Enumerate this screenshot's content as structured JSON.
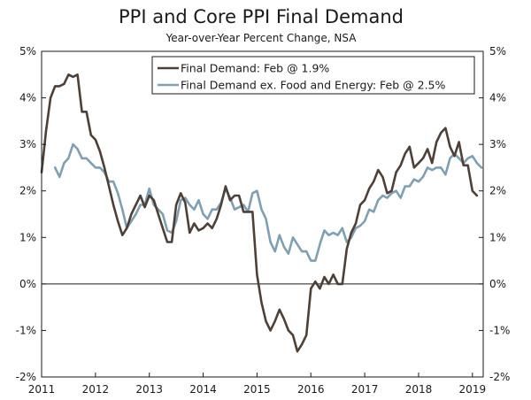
{
  "chart_data": {
    "type": "line",
    "title": "PPI and Core PPI Final Demand",
    "subtitle": "Year-over-Year Percent Change, NSA",
    "xlabel": "",
    "ylabel": "",
    "xlim": [
      2011,
      2019.2
    ],
    "ylim": [
      -2,
      5
    ],
    "x_ticks": [
      2011,
      2012,
      2013,
      2014,
      2015,
      2016,
      2017,
      2018,
      2019
    ],
    "x_tick_labels": [
      "2011",
      "2012",
      "2013",
      "2014",
      "2015",
      "2016",
      "2017",
      "2018",
      "2019"
    ],
    "y_ticks": [
      -2,
      -1,
      0,
      1,
      2,
      3,
      4,
      5
    ],
    "y_tick_labels": [
      "-2%",
      "-1%",
      "0%",
      "1%",
      "2%",
      "3%",
      "4%",
      "5%"
    ],
    "legend_position": "top-right",
    "series": [
      {
        "name": "Final Demand: Feb @ 1.9%",
        "color": "#4e4036",
        "start": 2011.0,
        "step": 0.08333,
        "values": [
          2.4,
          3.3,
          4.0,
          4.25,
          4.25,
          4.3,
          4.5,
          4.45,
          4.5,
          3.7,
          3.7,
          3.2,
          3.1,
          2.85,
          2.5,
          2.1,
          1.7,
          1.35,
          1.05,
          1.2,
          1.5,
          1.7,
          1.9,
          1.65,
          1.9,
          1.8,
          1.5,
          1.2,
          0.9,
          0.9,
          1.7,
          1.95,
          1.75,
          1.1,
          1.3,
          1.15,
          1.2,
          1.3,
          1.2,
          1.4,
          1.7,
          2.1,
          1.8,
          1.9,
          1.9,
          1.55,
          1.55,
          1.55,
          0.2,
          -0.4,
          -0.8,
          -1.0,
          -0.8,
          -0.55,
          -0.75,
          -1.0,
          -1.1,
          -1.45,
          -1.3,
          -1.1,
          -0.1,
          0.05,
          -0.1,
          0.15,
          0.0,
          0.2,
          0.0,
          0.0,
          0.75,
          1.1,
          1.3,
          1.7,
          1.8,
          2.05,
          2.2,
          2.45,
          2.3,
          1.95,
          2.0,
          2.4,
          2.55,
          2.8,
          2.95,
          2.5,
          2.6,
          2.7,
          2.9,
          2.6,
          3.05,
          3.25,
          3.35,
          2.95,
          2.75,
          3.05,
          2.55,
          2.55,
          2.0,
          1.9
        ]
      },
      {
        "name": "Final Demand ex. Food and Energy: Feb @ 2.5%",
        "color": "#7f9fb3",
        "start": 2011.25,
        "step": 0.08333,
        "values": [
          2.5,
          2.3,
          2.6,
          2.7,
          3.0,
          2.9,
          2.7,
          2.7,
          2.6,
          2.5,
          2.5,
          2.4,
          2.2,
          2.2,
          1.95,
          1.6,
          1.2,
          1.35,
          1.5,
          1.7,
          1.7,
          2.05,
          1.7,
          1.6,
          1.5,
          1.15,
          1.1,
          1.35,
          1.8,
          1.85,
          1.7,
          1.6,
          1.8,
          1.5,
          1.4,
          1.6,
          1.6,
          1.75,
          2.05,
          1.85,
          1.6,
          1.65,
          1.7,
          1.55,
          1.95,
          2.0,
          1.6,
          1.4,
          0.9,
          0.7,
          1.05,
          0.8,
          0.65,
          1.0,
          0.85,
          0.7,
          0.7,
          0.5,
          0.5,
          0.85,
          1.15,
          1.05,
          1.1,
          1.05,
          1.2,
          0.9,
          1.0,
          1.2,
          1.25,
          1.35,
          1.6,
          1.55,
          1.8,
          1.9,
          1.85,
          1.95,
          2.0,
          1.85,
          2.1,
          2.1,
          2.25,
          2.2,
          2.3,
          2.5,
          2.45,
          2.5,
          2.5,
          2.35,
          2.7,
          2.8,
          2.7,
          2.6,
          2.7,
          2.75,
          2.6,
          2.5
        ]
      }
    ]
  }
}
